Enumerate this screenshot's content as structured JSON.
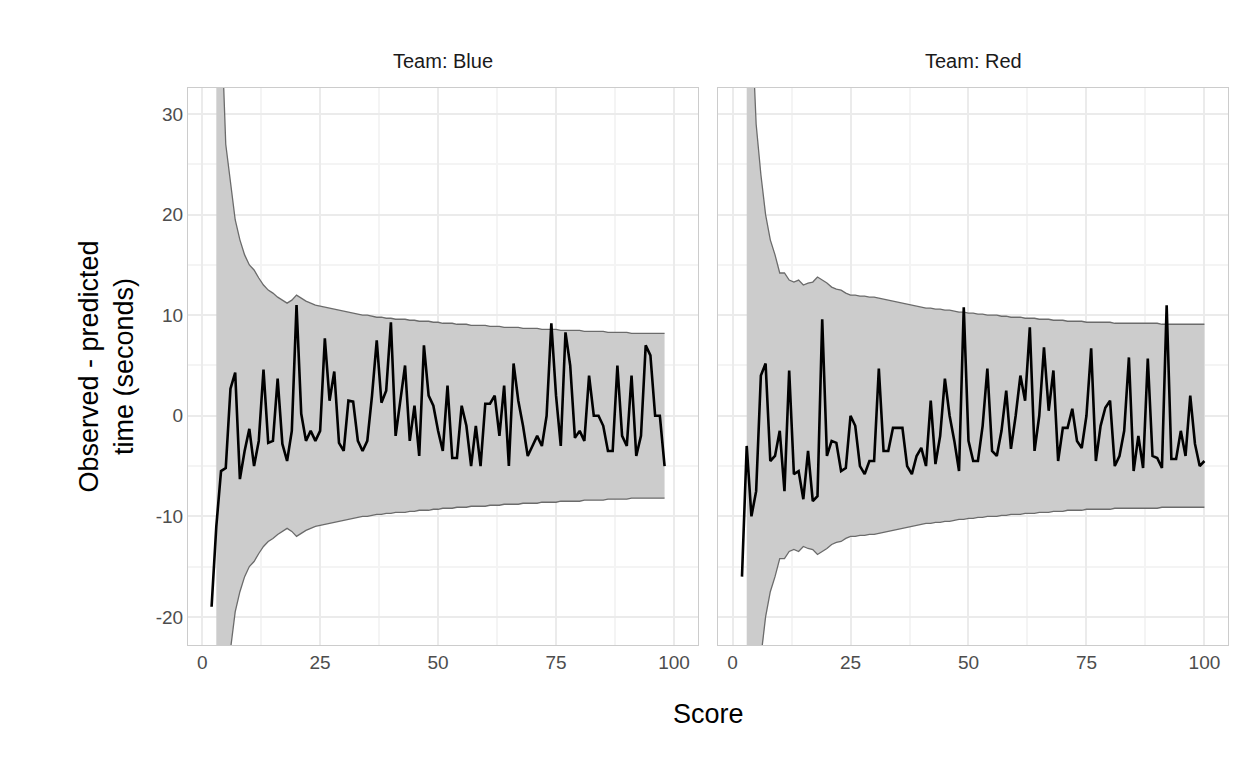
{
  "chart_data": {
    "type": "line",
    "x_label": "Score",
    "y_label": "Observed - predicted\ntime (seconds)",
    "xlim": [
      -3,
      105
    ],
    "ylim": [
      -22.8,
      32.6
    ],
    "xticks": [
      0,
      25,
      50,
      75,
      100
    ],
    "yticks": [
      -20,
      -10,
      0,
      10,
      20,
      30
    ],
    "grid": true,
    "color": "#000000",
    "facets": [
      {
        "title": "Team: Blue",
        "x": [
          2,
          3,
          4,
          5,
          6,
          7,
          8,
          9,
          10,
          11,
          12,
          13,
          14,
          15,
          16,
          17,
          18,
          19,
          20,
          21,
          22,
          23,
          24,
          25,
          26,
          27,
          28,
          29,
          30,
          31,
          32,
          33,
          34,
          35,
          36,
          37,
          38,
          39,
          40,
          41,
          42,
          43,
          44,
          45,
          46,
          47,
          48,
          49,
          50,
          51,
          52,
          53,
          54,
          55,
          56,
          57,
          58,
          59,
          60,
          61,
          62,
          63,
          64,
          65,
          66,
          67,
          68,
          69,
          70,
          71,
          72,
          73,
          74,
          75,
          76,
          77,
          78,
          79,
          80,
          81,
          82,
          83,
          84,
          85,
          86,
          87,
          88,
          89,
          90,
          91,
          92,
          93,
          94,
          95,
          96,
          97,
          98
        ],
        "values": [
          -19,
          -11,
          -5.5,
          -5.2,
          2.7,
          4.3,
          -6.3,
          -3.5,
          -1.3,
          -5,
          -2.5,
          4.6,
          -2.7,
          -2.5,
          3.7,
          -2.8,
          -4.5,
          -1.5,
          11,
          0.2,
          -2.5,
          -1.5,
          -2.5,
          -1.5,
          7.7,
          1.5,
          4.4,
          -2.7,
          -3.5,
          1.5,
          1.4,
          -2.5,
          -3.5,
          -2.5,
          2,
          7.5,
          1.3,
          2.5,
          9.3,
          -2,
          1.5,
          5,
          -2.5,
          1,
          -4,
          7,
          2,
          1,
          -1.5,
          -3.5,
          3,
          -4.2,
          -4.2,
          1,
          -1,
          -5,
          -1,
          -5,
          1.2,
          1.2,
          2,
          -2,
          3,
          -5,
          5.2,
          1.5,
          -1,
          -4,
          -3,
          -2,
          -3,
          0,
          9.2,
          2,
          -3,
          8.3,
          5,
          -2.2,
          -1.5,
          -2.5,
          4,
          0,
          0,
          -1,
          -3.5,
          -3.5,
          5,
          -2,
          -3,
          4,
          -4,
          -2,
          7,
          6,
          0,
          0,
          -5
        ],
        "upper": [
          null,
          60,
          40,
          27,
          23,
          19.5,
          17.5,
          16,
          15,
          14.5,
          13.7,
          13,
          12.5,
          12.2,
          11.8,
          11.5,
          11.2,
          11.5,
          12,
          11.7,
          11.4,
          11.2,
          11,
          10.9,
          10.8,
          10.7,
          10.6,
          10.5,
          10.4,
          10.3,
          10.2,
          10.1,
          10,
          10,
          9.9,
          9.8,
          9.8,
          9.7,
          9.7,
          9.6,
          9.6,
          9.6,
          9.5,
          9.5,
          9.4,
          9.4,
          9.4,
          9.3,
          9.3,
          9.2,
          9.2,
          9.2,
          9.1,
          9.1,
          9.1,
          9,
          9,
          9,
          9,
          8.9,
          8.9,
          8.9,
          8.8,
          8.8,
          8.8,
          8.8,
          8.7,
          8.7,
          8.7,
          8.7,
          8.6,
          8.6,
          8.6,
          8.6,
          8.5,
          8.5,
          8.5,
          8.5,
          8.5,
          8.4,
          8.4,
          8.4,
          8.4,
          8.4,
          8.3,
          8.3,
          8.3,
          8.3,
          8.3,
          8.2,
          8.2,
          8.2,
          8.2,
          8.2,
          8.2,
          8.2,
          8.2
        ],
        "lower": [
          null,
          -60,
          -40,
          -27,
          -23,
          -19.5,
          -17.5,
          -16,
          -15,
          -14.5,
          -13.7,
          -13,
          -12.5,
          -12.2,
          -11.8,
          -11.5,
          -11.2,
          -11.5,
          -12,
          -11.7,
          -11.4,
          -11.2,
          -11,
          -10.9,
          -10.8,
          -10.7,
          -10.6,
          -10.5,
          -10.4,
          -10.3,
          -10.2,
          -10.1,
          -10,
          -10,
          -9.9,
          -9.8,
          -9.8,
          -9.7,
          -9.7,
          -9.6,
          -9.6,
          -9.6,
          -9.5,
          -9.5,
          -9.4,
          -9.4,
          -9.4,
          -9.3,
          -9.3,
          -9.2,
          -9.2,
          -9.2,
          -9.1,
          -9.1,
          -9.1,
          -9,
          -9,
          -9,
          -9,
          -8.9,
          -8.9,
          -8.9,
          -8.8,
          -8.8,
          -8.8,
          -8.8,
          -8.7,
          -8.7,
          -8.7,
          -8.7,
          -8.6,
          -8.6,
          -8.6,
          -8.6,
          -8.5,
          -8.5,
          -8.5,
          -8.5,
          -8.5,
          -8.4,
          -8.4,
          -8.4,
          -8.4,
          -8.4,
          -8.3,
          -8.3,
          -8.3,
          -8.3,
          -8.3,
          -8.2,
          -8.2,
          -8.2,
          -8.2,
          -8.2,
          -8.2,
          -8.2,
          -8.2
        ]
      },
      {
        "title": "Team: Red",
        "x": [
          2,
          3,
          4,
          5,
          6,
          7,
          8,
          9,
          10,
          11,
          12,
          13,
          14,
          15,
          16,
          17,
          18,
          19,
          20,
          21,
          22,
          23,
          24,
          25,
          26,
          27,
          28,
          29,
          30,
          31,
          32,
          33,
          34,
          35,
          36,
          37,
          38,
          39,
          40,
          41,
          42,
          43,
          44,
          45,
          46,
          47,
          48,
          49,
          50,
          51,
          52,
          53,
          54,
          55,
          56,
          57,
          58,
          59,
          60,
          61,
          62,
          63,
          64,
          65,
          66,
          67,
          68,
          69,
          70,
          71,
          72,
          73,
          74,
          75,
          76,
          77,
          78,
          79,
          80,
          81,
          82,
          83,
          84,
          85,
          86,
          87,
          88,
          89,
          90,
          91,
          92,
          93,
          94,
          95,
          96,
          97,
          98,
          99,
          100
        ],
        "values": [
          -16,
          -3,
          -10,
          -7.5,
          4,
          5.2,
          -4.5,
          -4,
          -1.5,
          -7.5,
          4.5,
          -5.8,
          -5.5,
          -8.3,
          -3.5,
          -8.5,
          -8,
          9.6,
          -4,
          -2.5,
          -2.7,
          -5.5,
          -5.2,
          0,
          -1,
          -5,
          -5.8,
          -4.5,
          -4.5,
          4.7,
          -3.5,
          -3.5,
          -1.2,
          -1.2,
          -1.2,
          -5,
          -5.8,
          -4,
          -3.2,
          -5,
          1.5,
          -4.8,
          -2,
          3.7,
          0,
          -2.5,
          -5.5,
          10.8,
          -2.5,
          -4.5,
          -4.5,
          -1,
          4.7,
          -3.5,
          -4,
          -1.5,
          2.5,
          -3.3,
          0,
          4,
          1.5,
          8.8,
          -3.5,
          0,
          6.8,
          0.5,
          4.5,
          -4.5,
          -1.2,
          -1.2,
          0.7,
          -2.5,
          -3.2,
          0,
          6.7,
          -4.5,
          -1,
          0.8,
          1.5,
          -5,
          -4,
          -1.5,
          5.8,
          -5.5,
          -2,
          -5.2,
          5.7,
          -4,
          -4.2,
          -5.2,
          11,
          -4.3,
          -4.3,
          -1.5,
          -4,
          2,
          -2.8,
          -5,
          -4.5
        ],
        "upper": [
          null,
          60,
          40,
          29,
          24,
          20,
          17.5,
          16,
          14.2,
          14.2,
          13.5,
          13.3,
          13.5,
          13,
          13.2,
          13.3,
          13.8,
          13.5,
          13.2,
          12.8,
          12.6,
          12.5,
          12.2,
          12,
          12,
          11.9,
          11.9,
          11.8,
          11.8,
          11.7,
          11.6,
          11.5,
          11.4,
          11.3,
          11.2,
          11.1,
          11,
          10.9,
          10.8,
          10.7,
          10.7,
          10.6,
          10.6,
          10.5,
          10.5,
          10.4,
          10.3,
          10.3,
          10.2,
          10.2,
          10.1,
          10.1,
          10,
          10,
          10,
          9.9,
          9.9,
          9.8,
          9.8,
          9.8,
          9.7,
          9.7,
          9.7,
          9.6,
          9.6,
          9.6,
          9.5,
          9.5,
          9.5,
          9.4,
          9.4,
          9.4,
          9.4,
          9.3,
          9.3,
          9.3,
          9.3,
          9.3,
          9.3,
          9.2,
          9.2,
          9.2,
          9.2,
          9.2,
          9.2,
          9.2,
          9.2,
          9.2,
          9.2,
          9.1,
          9.1,
          9.1,
          9.1,
          9.1,
          9.1,
          9.1,
          9.1,
          9.1,
          9.1
        ],
        "lower": [
          null,
          -60,
          -40,
          -29,
          -24,
          -20,
          -17.5,
          -16,
          -14.2,
          -14.2,
          -13.5,
          -13.3,
          -13.5,
          -13,
          -13.2,
          -13.3,
          -13.8,
          -13.5,
          -13.2,
          -12.8,
          -12.6,
          -12.5,
          -12.2,
          -12,
          -12,
          -11.9,
          -11.9,
          -11.8,
          -11.8,
          -11.7,
          -11.6,
          -11.5,
          -11.4,
          -11.3,
          -11.2,
          -11.1,
          -11,
          -10.9,
          -10.8,
          -10.7,
          -10.7,
          -10.6,
          -10.6,
          -10.5,
          -10.5,
          -10.4,
          -10.3,
          -10.3,
          -10.2,
          -10.2,
          -10.1,
          -10.1,
          -10,
          -10,
          -10,
          -9.9,
          -9.9,
          -9.8,
          -9.8,
          -9.8,
          -9.7,
          -9.7,
          -9.7,
          -9.6,
          -9.6,
          -9.6,
          -9.5,
          -9.5,
          -9.5,
          -9.4,
          -9.4,
          -9.4,
          -9.4,
          -9.3,
          -9.3,
          -9.3,
          -9.3,
          -9.3,
          -9.3,
          -9.2,
          -9.2,
          -9.2,
          -9.2,
          -9.2,
          -9.2,
          -9.2,
          -9.2,
          -9.2,
          -9.2,
          -9.1,
          -9.1,
          -9.1,
          -9.1,
          -9.1,
          -9.1,
          -9.1,
          -9.1,
          -9.1,
          -9.1
        ]
      }
    ]
  }
}
